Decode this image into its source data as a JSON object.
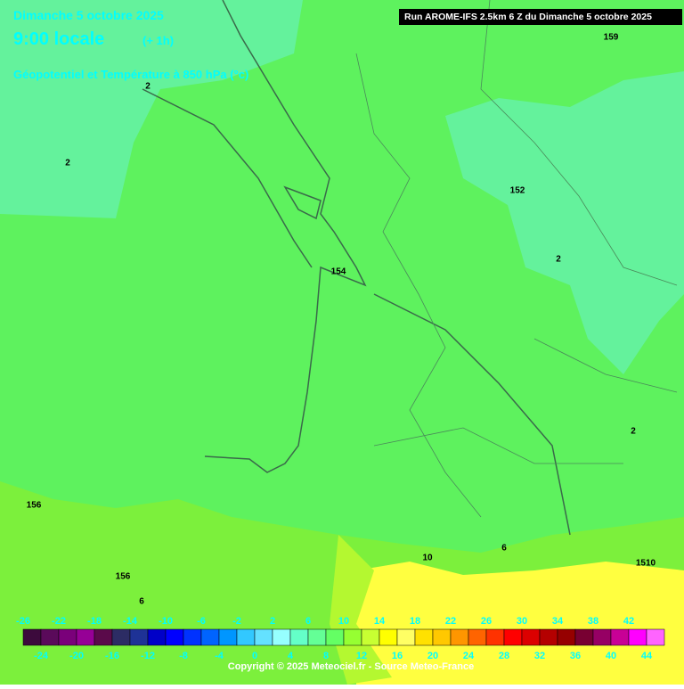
{
  "header": {
    "date": "Dimanche 5 octobre 2025",
    "time": "9:00 locale",
    "offset": "(+ 1h)",
    "field": "Géopotentiel et Température à 850 hPa (°c)",
    "run": "Run AROME-IFS 2.5km 6 Z du Dimanche 5 octobre 2025"
  },
  "contour_labels": [
    "2",
    "2",
    "154",
    "152",
    "2",
    "2",
    "156",
    "156",
    "6",
    "6",
    "10",
    "159",
    "1510"
  ],
  "colorbar": {
    "values": [
      -26,
      -24,
      -22,
      -20,
      -18,
      -16,
      -14,
      -12,
      -10,
      -8,
      -6,
      -4,
      -2,
      0,
      2,
      4,
      6,
      8,
      10,
      12,
      14,
      16,
      18,
      20,
      22,
      24,
      26,
      28,
      30,
      32,
      34,
      36,
      38,
      40,
      42,
      44
    ],
    "colors": [
      "#3c0a3c",
      "#5a0a5a",
      "#7a007a",
      "#960096",
      "#5a0a4a",
      "#2c2c64",
      "#1e3296",
      "#0000c8",
      "#0000ff",
      "#0032ff",
      "#0064ff",
      "#0096ff",
      "#32c8ff",
      "#64e1ff",
      "#96ffff",
      "#64ffc8",
      "#64ff96",
      "#64ff64",
      "#96ff32",
      "#c8ff32",
      "#ffff00",
      "#ffff64",
      "#ffe100",
      "#ffc800",
      "#ff9600",
      "#ff6400",
      "#ff3200",
      "#ff0000",
      "#dc0000",
      "#b40000",
      "#960000",
      "#780032",
      "#960064",
      "#c80096",
      "#ff00ff",
      "#ff64ff"
    ]
  },
  "copyright": "Copyright © 2025 Meteociel.fr - Source Meteo-France"
}
